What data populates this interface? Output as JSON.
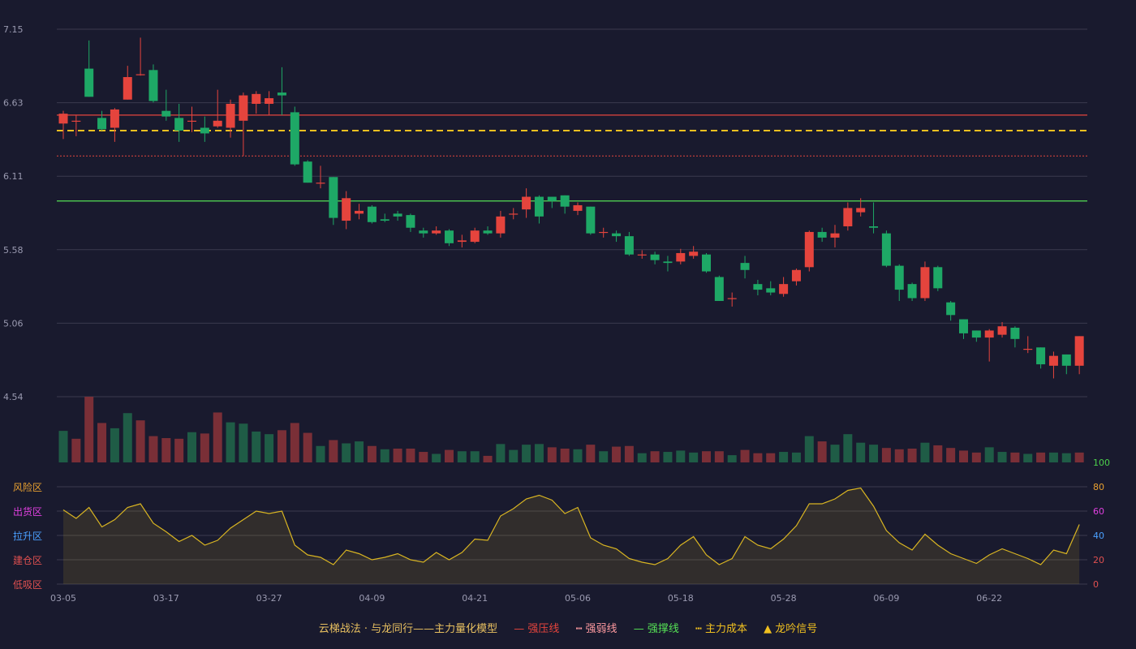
{
  "colors": {
    "background": "#191a2e",
    "grid": "#3a3b4f",
    "up": "#e5443d",
    "down": "#1ea866",
    "resistance": "#e5443d",
    "weak": "#e5443d",
    "support": "#55e055",
    "cost": "#f0c020",
    "oscillator": "#d9b522",
    "zone_risk": "#e8a030",
    "zone_ship": "#e040e0",
    "zone_pull": "#4aa0ff",
    "zone_build": "#e05050",
    "zone_low": "#e05050"
  },
  "chart_data": {
    "type": "candlestick",
    "title": "",
    "x_labels": [
      "03-05",
      "03-17",
      "03-27",
      "04-09",
      "04-21",
      "05-06",
      "05-18",
      "05-28",
      "06-09",
      "06-22"
    ],
    "y_ticks": [
      "7.15",
      "6.63",
      "6.11",
      "5.58",
      "5.06",
      "4.54"
    ],
    "ylim": [
      4.54,
      7.15
    ],
    "reference_lines": {
      "resistance": 6.54,
      "weak": 6.25,
      "support": 5.93,
      "cost": 6.43
    },
    "candles": [
      [
        6.48,
        6.55,
        6.57,
        6.37
      ],
      [
        6.5,
        6.5,
        6.54,
        6.39
      ],
      [
        6.87,
        6.67,
        7.07,
        6.67
      ],
      [
        6.52,
        6.44,
        6.57,
        6.43
      ],
      [
        6.45,
        6.58,
        6.59,
        6.35
      ],
      [
        6.65,
        6.81,
        6.89,
        6.65
      ],
      [
        6.83,
        6.83,
        7.09,
        6.82
      ],
      [
        6.86,
        6.64,
        6.9,
        6.63
      ],
      [
        6.57,
        6.53,
        6.72,
        6.5
      ],
      [
        6.52,
        6.43,
        6.62,
        6.35
      ],
      [
        6.5,
        6.5,
        6.6,
        6.42
      ],
      [
        6.45,
        6.41,
        6.53,
        6.35
      ],
      [
        6.46,
        6.5,
        6.72,
        6.45
      ],
      [
        6.45,
        6.62,
        6.65,
        6.38
      ],
      [
        6.5,
        6.68,
        6.7,
        6.25
      ],
      [
        6.62,
        6.69,
        6.71,
        6.55
      ],
      [
        6.62,
        6.66,
        6.71,
        6.54
      ],
      [
        6.7,
        6.68,
        6.88,
        6.54
      ],
      [
        6.56,
        6.19,
        6.6,
        6.18
      ],
      [
        6.21,
        6.06,
        6.22,
        6.06
      ],
      [
        6.06,
        6.06,
        6.18,
        6.02
      ],
      [
        6.1,
        5.81,
        6.1,
        5.76
      ],
      [
        5.79,
        5.95,
        6.0,
        5.73
      ],
      [
        5.84,
        5.86,
        5.91,
        5.8
      ],
      [
        5.89,
        5.78,
        5.9,
        5.77
      ],
      [
        5.8,
        5.79,
        5.84,
        5.78
      ],
      [
        5.84,
        5.82,
        5.86,
        5.79
      ],
      [
        5.83,
        5.74,
        5.84,
        5.71
      ],
      [
        5.72,
        5.7,
        5.74,
        5.67
      ],
      [
        5.7,
        5.72,
        5.75,
        5.69
      ],
      [
        5.72,
        5.63,
        5.73,
        5.61
      ],
      [
        5.64,
        5.65,
        5.69,
        5.6
      ],
      [
        5.64,
        5.72,
        5.74,
        5.63
      ],
      [
        5.72,
        5.7,
        5.75,
        5.69
      ],
      [
        5.7,
        5.82,
        5.86,
        5.67
      ],
      [
        5.84,
        5.84,
        5.88,
        5.8
      ],
      [
        5.87,
        5.96,
        6.02,
        5.81
      ],
      [
        5.96,
        5.82,
        5.97,
        5.77
      ],
      [
        5.96,
        5.93,
        5.96,
        5.88
      ],
      [
        5.97,
        5.89,
        5.97,
        5.84
      ],
      [
        5.86,
        5.9,
        5.92,
        5.83
      ],
      [
        5.89,
        5.7,
        5.89,
        5.69
      ],
      [
        5.71,
        5.71,
        5.74,
        5.67
      ],
      [
        5.7,
        5.68,
        5.72,
        5.64
      ],
      [
        5.68,
        5.55,
        5.71,
        5.54
      ],
      [
        5.55,
        5.55,
        5.58,
        5.52
      ],
      [
        5.55,
        5.51,
        5.57,
        5.48
      ],
      [
        5.5,
        5.49,
        5.54,
        5.43
      ],
      [
        5.5,
        5.56,
        5.59,
        5.48
      ],
      [
        5.54,
        5.57,
        5.61,
        5.52
      ],
      [
        5.55,
        5.43,
        5.56,
        5.42
      ],
      [
        5.39,
        5.22,
        5.4,
        5.22
      ],
      [
        5.24,
        5.24,
        5.28,
        5.18
      ],
      [
        5.49,
        5.44,
        5.54,
        5.38
      ],
      [
        5.34,
        5.3,
        5.37,
        5.26
      ],
      [
        5.31,
        5.28,
        5.36,
        5.26
      ],
      [
        5.27,
        5.34,
        5.39,
        5.25
      ],
      [
        5.36,
        5.44,
        5.45,
        5.33
      ],
      [
        5.46,
        5.71,
        5.72,
        5.43
      ],
      [
        5.71,
        5.67,
        5.74,
        5.64
      ],
      [
        5.67,
        5.7,
        5.76,
        5.6
      ],
      [
        5.75,
        5.88,
        5.92,
        5.72
      ],
      [
        5.85,
        5.88,
        5.95,
        5.82
      ],
      [
        5.75,
        5.74,
        5.92,
        5.7
      ],
      [
        5.7,
        5.47,
        5.72,
        5.46
      ],
      [
        5.47,
        5.3,
        5.48,
        5.22
      ],
      [
        5.34,
        5.24,
        5.35,
        5.22
      ],
      [
        5.24,
        5.46,
        5.5,
        5.22
      ],
      [
        5.46,
        5.31,
        5.47,
        5.29
      ],
      [
        5.21,
        5.12,
        5.22,
        5.08
      ],
      [
        5.09,
        4.99,
        5.09,
        4.95
      ],
      [
        5.01,
        4.96,
        5.01,
        4.93
      ],
      [
        4.96,
        5.01,
        5.02,
        4.79
      ],
      [
        4.98,
        5.04,
        5.07,
        4.96
      ],
      [
        5.03,
        4.95,
        5.04,
        4.89
      ],
      [
        4.88,
        4.88,
        4.97,
        4.85
      ],
      [
        4.89,
        4.77,
        4.89,
        4.74
      ],
      [
        4.76,
        4.83,
        4.86,
        4.67
      ],
      [
        4.84,
        4.76,
        4.84,
        4.7
      ],
      [
        4.76,
        4.97,
        4.97,
        4.7
      ]
    ],
    "volume_max_label": "100",
    "volumes": [
      [
        48,
        0
      ],
      [
        36,
        1
      ],
      [
        100,
        1
      ],
      [
        60,
        1
      ],
      [
        52,
        0
      ],
      [
        75,
        0
      ],
      [
        64,
        1
      ],
      [
        40,
        1
      ],
      [
        37,
        1
      ],
      [
        36,
        1
      ],
      [
        46,
        0
      ],
      [
        44,
        1
      ],
      [
        76,
        1
      ],
      [
        61,
        0
      ],
      [
        59,
        0
      ],
      [
        47,
        0
      ],
      [
        43,
        0
      ],
      [
        49,
        1
      ],
      [
        60,
        1
      ],
      [
        45,
        1
      ],
      [
        25,
        0
      ],
      [
        34,
        1
      ],
      [
        29,
        0
      ],
      [
        32,
        0
      ],
      [
        25,
        1
      ],
      [
        20,
        0
      ],
      [
        21,
        1
      ],
      [
        21,
        1
      ],
      [
        16,
        1
      ],
      [
        13,
        0
      ],
      [
        19,
        1
      ],
      [
        17,
        0
      ],
      [
        17,
        0
      ],
      [
        10,
        1
      ],
      [
        28,
        0
      ],
      [
        19,
        0
      ],
      [
        27,
        0
      ],
      [
        28,
        0
      ],
      [
        23,
        1
      ],
      [
        21,
        1
      ],
      [
        20,
        0
      ],
      [
        27,
        1
      ],
      [
        17,
        0
      ],
      [
        24,
        1
      ],
      [
        25,
        1
      ],
      [
        14,
        0
      ],
      [
        17,
        1
      ],
      [
        16,
        0
      ],
      [
        18,
        0
      ],
      [
        15,
        0
      ],
      [
        17,
        1
      ],
      [
        17,
        1
      ],
      [
        11,
        0
      ],
      [
        19,
        1
      ],
      [
        14,
        1
      ],
      [
        14,
        1
      ],
      [
        16,
        0
      ],
      [
        15,
        0
      ],
      [
        40,
        0
      ],
      [
        32,
        1
      ],
      [
        27,
        0
      ],
      [
        43,
        0
      ],
      [
        30,
        0
      ],
      [
        27,
        0
      ],
      [
        22,
        1
      ],
      [
        20,
        1
      ],
      [
        21,
        1
      ],
      [
        30,
        0
      ],
      [
        26,
        1
      ],
      [
        22,
        1
      ],
      [
        18,
        1
      ],
      [
        15,
        1
      ],
      [
        23,
        0
      ],
      [
        16,
        0
      ],
      [
        15,
        1
      ],
      [
        13,
        0
      ],
      [
        15,
        1
      ],
      [
        15,
        0
      ],
      [
        14,
        0
      ],
      [
        15,
        1
      ]
    ],
    "oscillator": {
      "zone_labels": [
        "风险区",
        "出货区",
        "拉升区",
        "建仓区",
        "低吸区"
      ],
      "y_ticks": [
        "100",
        "80",
        "60",
        "40",
        "20",
        "0"
      ],
      "ylim": [
        0,
        100
      ],
      "values": [
        61,
        54,
        63,
        47,
        53,
        63,
        66,
        50,
        43,
        35,
        40,
        32,
        36,
        46,
        53,
        60,
        58,
        60,
        32,
        24,
        22,
        16,
        28,
        25,
        20,
        22,
        25,
        20,
        18,
        26,
        20,
        26,
        37,
        36,
        56,
        62,
        70,
        73,
        69,
        58,
        63,
        38,
        32,
        29,
        21,
        18,
        16,
        21,
        32,
        39,
        24,
        16,
        21,
        39,
        32,
        29,
        37,
        48,
        66,
        66,
        70,
        77,
        79,
        64,
        44,
        34,
        28,
        41,
        32,
        25,
        21,
        17,
        24,
        29,
        25,
        21,
        16,
        28,
        25,
        49
      ]
    },
    "legend": [
      {
        "label": "云梯战法 · 与龙同行——主力量化模型",
        "kind": "title"
      },
      {
        "label": "强压线",
        "kind": "solid-red"
      },
      {
        "label": "强弱线",
        "kind": "dash-red"
      },
      {
        "label": "强撑线",
        "kind": "solid-green"
      },
      {
        "label": "主力成本",
        "kind": "dash-yellow"
      },
      {
        "label": "龙吟信号",
        "kind": "triangle"
      }
    ]
  }
}
